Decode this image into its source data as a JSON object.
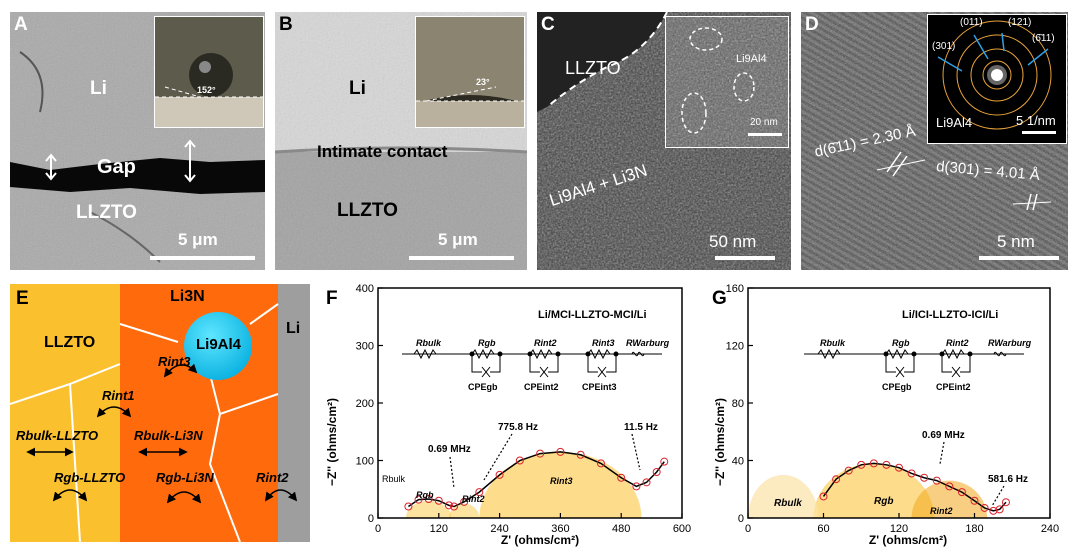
{
  "panels": {
    "A": {
      "label": "A",
      "layer_li": "Li",
      "gap": "Gap",
      "layer_llzto": "LLZTO",
      "scale": "5 μm",
      "contact_angle": "152°"
    },
    "B": {
      "label": "B",
      "layer_li": "Li",
      "contact": "Intimate contact",
      "layer_llzto": "LLZTO",
      "scale": "5 μm",
      "contact_angle": "23°"
    },
    "C": {
      "label": "C",
      "layer_llzto": "LLZTO",
      "inset_phase": "Li9Al4",
      "inset_scale": "20 nm",
      "product": "Li9Al4 + Li3N",
      "scale": "50 nm"
    },
    "D": {
      "label": "D",
      "d611": "d(6̄11) = 2.30 Å",
      "d301": "d(301) = 4.01 Å",
      "scale": "5 nm",
      "saed_011": "(011)",
      "saed_121": "(121)",
      "saed_301": "(301)",
      "saed_611": "(6̄11)",
      "saed_phase": "Li9Al4",
      "saed_scale": "5 1/nm"
    },
    "E": {
      "label": "E",
      "llzto": "LLZTO",
      "li3n": "Li3N",
      "li9al4": "Li9Al4",
      "li": "Li",
      "r_int3": "Rint3",
      "r_int1": "Rint1",
      "r_bulk_llzto": "Rbulk-LLZTO",
      "r_bulk_li3n": "Rbulk-Li3N",
      "r_gb_llzto": "Rgb-LLZTO",
      "r_gb_li3n": "Rgb-Li3N",
      "r_int2": "Rint2"
    },
    "F": {
      "label": "F",
      "title": "Li/MCI-LLZTO-MCI/Li",
      "ylabel": "−Z'' (ohms/cm²)",
      "xlabel": "Z' (ohms/cm²)",
      "freq_1": "0.69 MHz",
      "freq_2": "775.8 Hz",
      "freq_3": "11.5 Hz",
      "reg_bulk": "Rbulk",
      "reg_gb": "Rgb",
      "reg_int2": "Rint2",
      "reg_int3": "Rint3",
      "circuit": {
        "r1": "Rbulk",
        "r2": "Rgb",
        "r3": "Rint2",
        "r4": "Rint3",
        "r5": "RWarburg",
        "c1": "CPEgb",
        "c2": "CPEint2",
        "c3": "CPEint3"
      }
    },
    "G": {
      "label": "G",
      "title": "Li/ICI-LLZTO-ICI/Li",
      "ylabel": "−Z'' (ohms/cm²)",
      "xlabel": "Z' (ohms/cm²)",
      "freq_1": "0.69 MHz",
      "freq_2": "581.6 Hz",
      "reg_bulk": "Rbulk",
      "reg_gb": "Rgb",
      "reg_int2": "Rint2",
      "circuit": {
        "r1": "Rbulk",
        "r2": "Rgb",
        "r3": "Rint2",
        "r5": "RWarburg",
        "c1": "CPEgb",
        "c2": "CPEint2"
      }
    }
  },
  "chart_data": [
    {
      "type": "scatter",
      "title": "Li/MCI-LLZTO-MCI/Li",
      "xlabel": "Z' (ohms/cm²)",
      "ylabel": "−Z'' (ohms/cm²)",
      "xlim": [
        0,
        600
      ],
      "ylim": [
        0,
        400
      ],
      "xticks": [
        0,
        120,
        240,
        360,
        480,
        600
      ],
      "yticks": [
        0,
        100,
        200,
        300,
        400
      ],
      "grid": false,
      "series": [
        {
          "values_x": [
            60,
            80,
            100,
            120,
            140,
            150,
            170,
            200,
            240,
            280,
            320,
            360,
            400,
            440,
            480,
            510,
            530,
            550,
            565
          ],
          "values_y": [
            20,
            32,
            33,
            30,
            22,
            20,
            28,
            45,
            75,
            100,
            112,
            115,
            110,
            95,
            70,
            55,
            62,
            80,
            98
          ]
        }
      ]
    },
    {
      "type": "scatter",
      "title": "Li/ICI-LLZTO-ICI/Li",
      "xlabel": "Z' (ohms/cm²)",
      "ylabel": "−Z'' (ohms/cm²)",
      "xlim": [
        0,
        240
      ],
      "ylim": [
        0,
        160
      ],
      "xticks": [
        0,
        60,
        120,
        180,
        240
      ],
      "yticks": [
        0,
        40,
        80,
        120,
        160
      ],
      "grid": false,
      "series": [
        {
          "values_x": [
            60,
            70,
            80,
            90,
            100,
            110,
            120,
            130,
            140,
            150,
            160,
            170,
            180,
            188,
            195,
            200,
            205
          ],
          "values_y": [
            15,
            27,
            33,
            37,
            38,
            37,
            35,
            31,
            28,
            26,
            22,
            18,
            12,
            7,
            5,
            6,
            11
          ]
        }
      ]
    }
  ]
}
